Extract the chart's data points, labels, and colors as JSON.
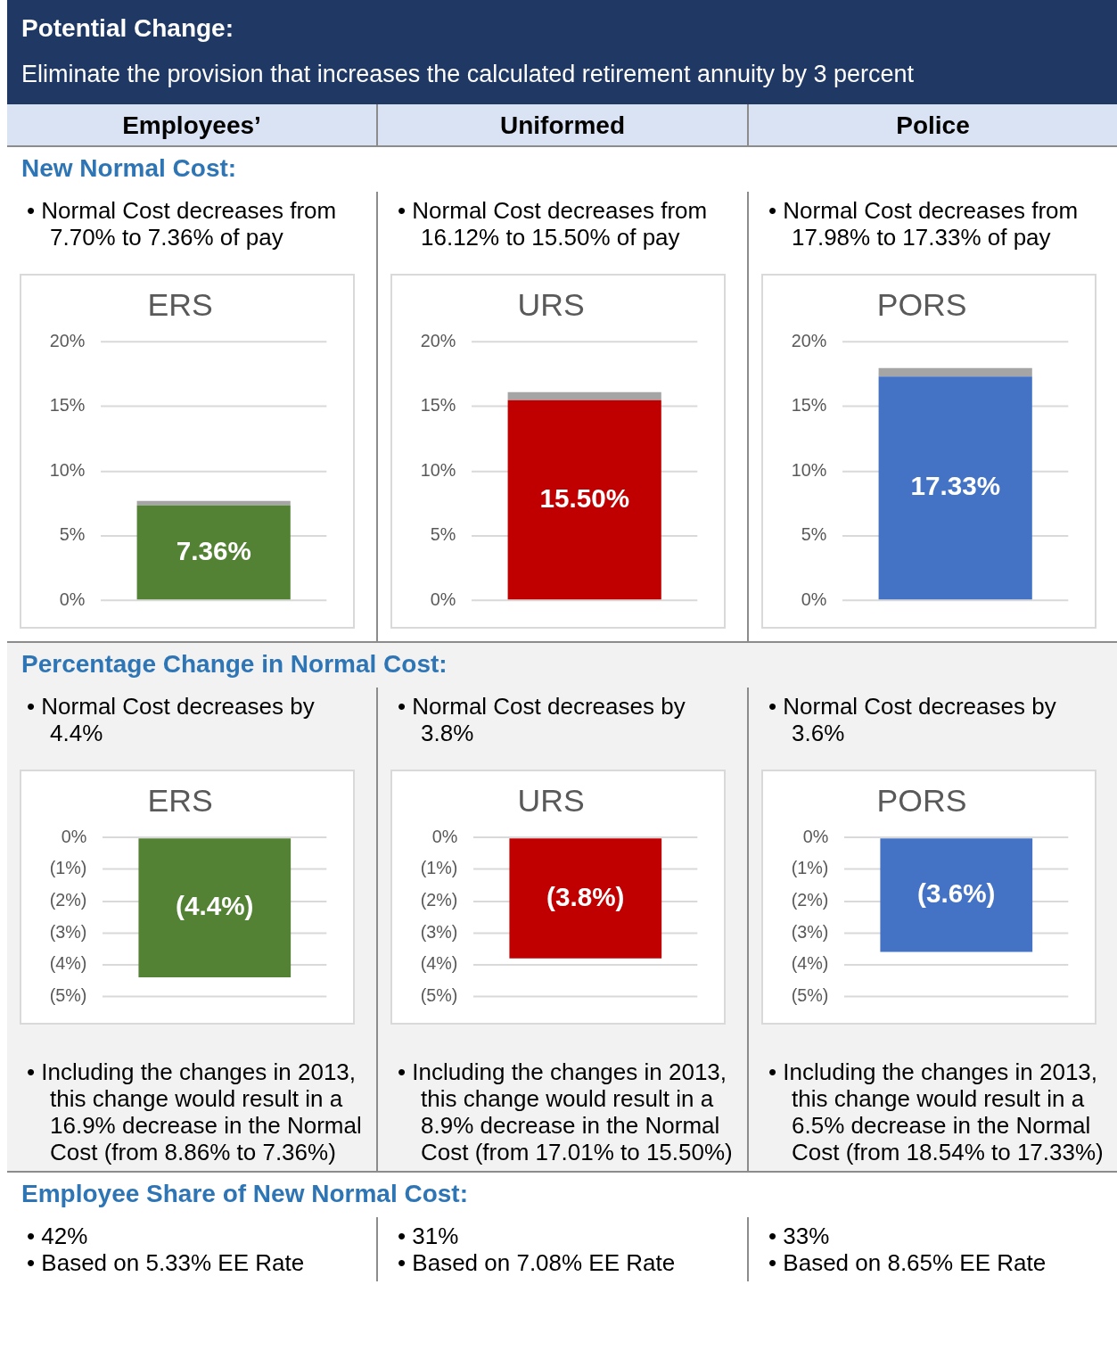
{
  "chart_data": [
    {
      "type": "bar",
      "title": "ERS",
      "categories": [
        null
      ],
      "stacked": true,
      "legend": false,
      "grid": "y",
      "tick_labels": "y",
      "ylim": [
        0,
        20
      ],
      "yticks": [
        {
          "value": 0,
          "label": "0%"
        },
        {
          "value": 5,
          "label": "5%"
        },
        {
          "value": 10,
          "label": "10%"
        },
        {
          "value": 15,
          "label": "15%"
        },
        {
          "value": 20,
          "label": "20%"
        }
      ],
      "series": [
        {
          "color": "#548235",
          "values": [
            7.36
          ],
          "value_labels": [
            "7.36%"
          ]
        },
        {
          "color": "#a5a5a5",
          "values": [
            0.34
          ]
        }
      ],
      "annotations": [
        "Potential Change:",
        "Eliminate the provision that increases the calculated retirement annuity by 3 percent",
        "Employees’",
        "New Normal Cost:",
        "• Normal Cost decreases from 7.70% to 7.36% of pay"
      ]
    },
    {
      "type": "bar",
      "title": "URS",
      "categories": [
        null
      ],
      "stacked": true,
      "legend": false,
      "grid": "y",
      "tick_labels": "y",
      "ylim": [
        0,
        20
      ],
      "yticks": [
        {
          "value": 0,
          "label": "0%"
        },
        {
          "value": 5,
          "label": "5%"
        },
        {
          "value": 10,
          "label": "10%"
        },
        {
          "value": 15,
          "label": "15%"
        },
        {
          "value": 20,
          "label": "20%"
        }
      ],
      "series": [
        {
          "color": "#c00000",
          "values": [
            15.5
          ],
          "value_labels": [
            "15.50%"
          ]
        },
        {
          "color": "#a5a5a5",
          "values": [
            0.62
          ]
        }
      ],
      "annotations": [
        "Uniformed",
        "• Normal Cost decreases from 16.12% to 15.50% of pay"
      ]
    },
    {
      "type": "bar",
      "title": "PORS",
      "categories": [
        null
      ],
      "stacked": true,
      "legend": false,
      "grid": "y",
      "tick_labels": "y",
      "ylim": [
        0,
        20
      ],
      "yticks": [
        {
          "value": 0,
          "label": "0%"
        },
        {
          "value": 5,
          "label": "5%"
        },
        {
          "value": 10,
          "label": "10%"
        },
        {
          "value": 15,
          "label": "15%"
        },
        {
          "value": 20,
          "label": "20%"
        }
      ],
      "series": [
        {
          "color": "#4472c4",
          "values": [
            17.33
          ],
          "value_labels": [
            "17.33%"
          ]
        },
        {
          "color": "#a5a5a5",
          "values": [
            0.65
          ]
        }
      ],
      "annotations": [
        "Police",
        "• Normal Cost decreases from 17.98% to 17.33% of pay"
      ]
    },
    {
      "type": "bar",
      "title": "ERS",
      "categories": [
        null
      ],
      "legend": false,
      "grid": "y",
      "tick_labels": "y",
      "ylim": [
        -5,
        0
      ],
      "yticks": [
        {
          "value": -5,
          "label": "(5%)"
        },
        {
          "value": -4,
          "label": "(4%)"
        },
        {
          "value": -3,
          "label": "(3%)"
        },
        {
          "value": -2,
          "label": "(2%)"
        },
        {
          "value": -1,
          "label": "(1%)"
        },
        {
          "value": 0,
          "label": "0%"
        }
      ],
      "series": [
        {
          "color": "#548235",
          "values": [
            -4.4
          ],
          "value_labels": [
            "(4.4%)"
          ]
        }
      ],
      "annotations": [
        "Percentage Change in Normal Cost:",
        "• Normal Cost decreases by 4.4%",
        "• Including the changes in 2013, this change would result in a 16.9% decrease in the Normal Cost (from 8.86% to 7.36%)",
        "Employee Share of New Normal Cost:",
        "• 42%",
        "• Based on 5.33% EE Rate"
      ]
    },
    {
      "type": "bar",
      "title": "URS",
      "categories": [
        null
      ],
      "legend": false,
      "grid": "y",
      "tick_labels": "y",
      "ylim": [
        -5,
        0
      ],
      "yticks": [
        {
          "value": -5,
          "label": "(5%)"
        },
        {
          "value": -4,
          "label": "(4%)"
        },
        {
          "value": -3,
          "label": "(3%)"
        },
        {
          "value": -2,
          "label": "(2%)"
        },
        {
          "value": -1,
          "label": "(1%)"
        },
        {
          "value": 0,
          "label": "0%"
        }
      ],
      "series": [
        {
          "color": "#c00000",
          "values": [
            -3.8
          ],
          "value_labels": [
            "(3.8%)"
          ]
        }
      ],
      "annotations": [
        "• Normal Cost decreases by 3.8%",
        "• Including the changes in 2013, this change would result in a 8.9% decrease in the Normal Cost (from 17.01% to 15.50%)",
        "• 31%",
        "• Based on 7.08% EE Rate"
      ]
    },
    {
      "type": "bar",
      "title": "PORS",
      "categories": [
        null
      ],
      "legend": false,
      "grid": "y",
      "tick_labels": "y",
      "ylim": [
        -5,
        0
      ],
      "yticks": [
        {
          "value": -5,
          "label": "(5%)"
        },
        {
          "value": -4,
          "label": "(4%)"
        },
        {
          "value": -3,
          "label": "(3%)"
        },
        {
          "value": -2,
          "label": "(2%)"
        },
        {
          "value": -1,
          "label": "(1%)"
        },
        {
          "value": 0,
          "label": "0%"
        }
      ],
      "series": [
        {
          "color": "#4472c4",
          "values": [
            -3.6
          ],
          "value_labels": [
            "(3.6%)"
          ]
        }
      ],
      "annotations": [
        "• Normal Cost decreases by 3.6%",
        "• Including the changes in 2013, this change would result in a 6.5% decrease in the Normal Cost (from 18.54% to 17.33%)",
        "• 33%",
        "• Based on 8.65% EE Rate"
      ]
    }
  ]
}
